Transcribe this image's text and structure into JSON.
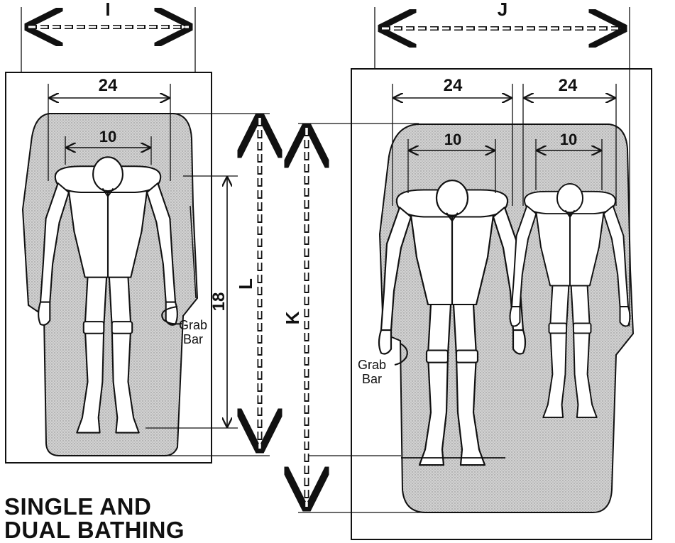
{
  "dimensions": {
    "single_width": "I",
    "dual_width": "J",
    "single_length": "L",
    "dual_length": "K",
    "shoulder_single": "24",
    "shoulder_dual_left": "24",
    "shoulder_dual_right": "24",
    "head_single": "10",
    "head_dual_left": "10",
    "head_dual_right": "10",
    "vertical_single": "18"
  },
  "labels": {
    "grab_bar_single_1": "Grab",
    "grab_bar_single_2": "Bar",
    "grab_bar_dual_1": "Grab",
    "grab_bar_dual_2": "Bar"
  },
  "caption": {
    "line1": "SINGLE AND",
    "line2": "DUAL BATHING"
  },
  "colors": {
    "stroke": "#111111",
    "tub_fill": "#c9c9c9",
    "figure_fill": "#ffffff"
  }
}
